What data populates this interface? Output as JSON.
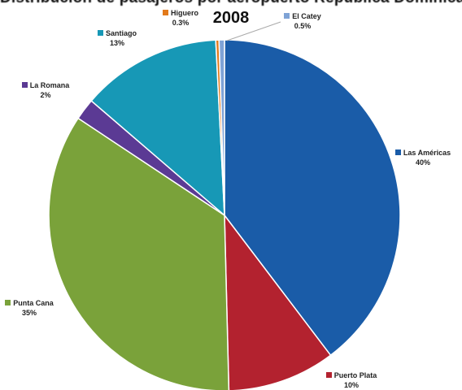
{
  "chart_data": {
    "type": "pie",
    "title_top": "2008",
    "title_cut": "Distribución de pasajeros por aeropuerto República Dominicana",
    "slices": [
      {
        "name": "Las Américas",
        "value": 40,
        "label": "40%",
        "color": "#1a5ca8"
      },
      {
        "name": "Puerto Plata",
        "value": 10,
        "label": "10%",
        "color": "#b3222f"
      },
      {
        "name": "Punta Cana",
        "value": 35,
        "label": "35%",
        "color": "#7aa23a"
      },
      {
        "name": "La Romana",
        "value": 2,
        "label": "2%",
        "color": "#5b3a94"
      },
      {
        "name": "Santiago",
        "value": 13,
        "label": "13%",
        "color": "#1798b6"
      },
      {
        "name": "Higuero",
        "value": 0.3,
        "label": "0.3%",
        "color": "#e27a1b"
      },
      {
        "name": "El Catey",
        "value": 0.5,
        "label": "0.5%",
        "color": "#7fa3d6"
      }
    ],
    "legend": "labels-outside"
  }
}
